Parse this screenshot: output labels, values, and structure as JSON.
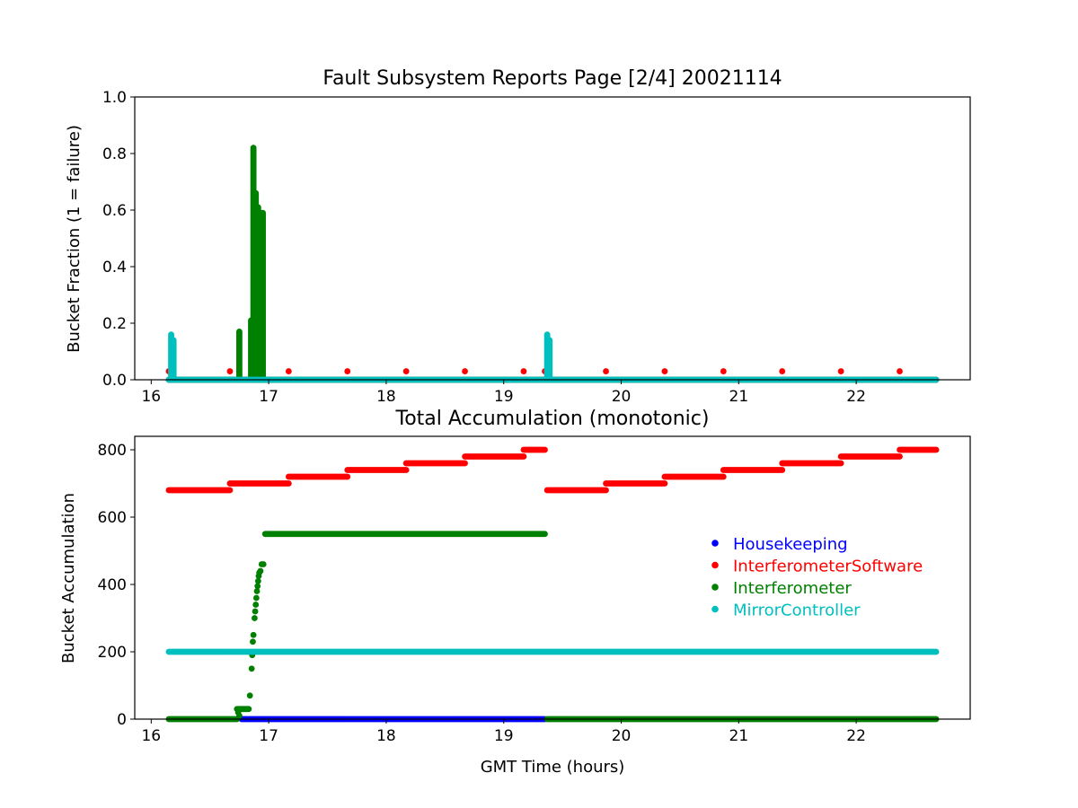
{
  "chart_data": [
    {
      "type": "scatter",
      "title": "Fault Subsystem Reports Page [2/4] 20021114",
      "xlabel": "",
      "ylabel": "Bucket Fraction (1 = failure)",
      "xlim": [
        15.86,
        22.97
      ],
      "ylim": [
        0.0,
        1.0
      ],
      "xticks": [
        16,
        17,
        18,
        19,
        20,
        21,
        22
      ],
      "yticks": [
        0.0,
        0.2,
        0.4,
        0.6,
        0.8,
        1.0
      ],
      "ytick_labels": [
        "0.0",
        "0.2",
        "0.4",
        "0.6",
        "0.8",
        "1.0"
      ],
      "grid": false,
      "series": [
        {
          "name": "InterferometerSoftware",
          "color": "#ff0000",
          "baseline": {
            "x_start": 16.15,
            "x_end": 22.68,
            "y": 0.0
          },
          "points": [
            {
              "x": 16.15,
              "y": 0.03
            },
            {
              "x": 16.67,
              "y": 0.03
            },
            {
              "x": 17.17,
              "y": 0.03
            },
            {
              "x": 17.67,
              "y": 0.03
            },
            {
              "x": 18.17,
              "y": 0.03
            },
            {
              "x": 18.67,
              "y": 0.03
            },
            {
              "x": 19.17,
              "y": 0.03
            },
            {
              "x": 19.35,
              "y": 0.03
            },
            {
              "x": 19.87,
              "y": 0.03
            },
            {
              "x": 20.37,
              "y": 0.03
            },
            {
              "x": 20.87,
              "y": 0.03
            },
            {
              "x": 21.37,
              "y": 0.03
            },
            {
              "x": 21.87,
              "y": 0.03
            },
            {
              "x": 22.37,
              "y": 0.03
            }
          ]
        },
        {
          "name": "Interferometer",
          "color": "#008000",
          "baseline": {
            "x_start": 16.15,
            "x_end": 22.68,
            "y": 0.0
          },
          "stems": [
            {
              "x": 16.75,
              "ymax": 0.17
            },
            {
              "x": 16.85,
              "ymax": 0.21
            },
            {
              "x": 16.87,
              "ymax": 0.82
            },
            {
              "x": 16.89,
              "ymax": 0.66
            },
            {
              "x": 16.91,
              "ymax": 0.61
            },
            {
              "x": 16.93,
              "ymax": 0.59
            },
            {
              "x": 16.95,
              "ymax": 0.59
            }
          ]
        },
        {
          "name": "MirrorController",
          "color": "#00bfbf",
          "baseline": {
            "x_start": 16.15,
            "x_end": 22.68,
            "y": 0.0
          },
          "stems": [
            {
              "x": 16.17,
              "ymax": 0.16
            },
            {
              "x": 16.19,
              "ymax": 0.14
            },
            {
              "x": 19.37,
              "ymax": 0.16
            },
            {
              "x": 19.39,
              "ymax": 0.14
            }
          ]
        }
      ]
    },
    {
      "type": "scatter",
      "title": "Total Accumulation (monotonic)",
      "xlabel": "GMT Time (hours)",
      "ylabel": "Bucket Accumulation",
      "xlim": [
        15.86,
        22.97
      ],
      "ylim": [
        0,
        840
      ],
      "xticks": [
        16,
        17,
        18,
        19,
        20,
        21,
        22
      ],
      "yticks": [
        0,
        200,
        400,
        600,
        800
      ],
      "grid": false,
      "legend": "center-right",
      "series": [
        {
          "name": "Housekeeping",
          "color": "#0000ff",
          "segments": [
            {
              "x_start": 16.77,
              "x_end": 19.35,
              "y": 0
            }
          ]
        },
        {
          "name": "InterferometerSoftware",
          "color": "#ff0000",
          "segments": [
            {
              "x_start": 16.15,
              "x_end": 16.67,
              "y": 680
            },
            {
              "x_start": 16.67,
              "x_end": 17.17,
              "y": 700
            },
            {
              "x_start": 17.17,
              "x_end": 17.67,
              "y": 720
            },
            {
              "x_start": 17.67,
              "x_end": 18.17,
              "y": 740
            },
            {
              "x_start": 18.17,
              "x_end": 18.67,
              "y": 760
            },
            {
              "x_start": 18.67,
              "x_end": 19.17,
              "y": 780
            },
            {
              "x_start": 19.17,
              "x_end": 19.35,
              "y": 800
            },
            {
              "x_start": 19.37,
              "x_end": 19.87,
              "y": 680
            },
            {
              "x_start": 19.87,
              "x_end": 20.37,
              "y": 700
            },
            {
              "x_start": 20.37,
              "x_end": 20.87,
              "y": 720
            },
            {
              "x_start": 20.87,
              "x_end": 21.37,
              "y": 740
            },
            {
              "x_start": 21.37,
              "x_end": 21.87,
              "y": 760
            },
            {
              "x_start": 21.87,
              "x_end": 22.37,
              "y": 780
            },
            {
              "x_start": 22.37,
              "x_end": 22.68,
              "y": 800
            }
          ]
        },
        {
          "name": "Interferometer",
          "color": "#008000",
          "segments": [
            {
              "x_start": 16.15,
              "x_end": 16.73,
              "y": 0
            },
            {
              "x_start": 16.73,
              "x_end": 16.83,
              "y": 30
            },
            {
              "x_start": 16.97,
              "x_end": 19.35,
              "y": 550
            },
            {
              "x_start": 19.37,
              "x_end": 22.68,
              "y": 0
            }
          ],
          "points": [
            {
              "x": 16.74,
              "y": 20
            },
            {
              "x": 16.75,
              "y": 10
            },
            {
              "x": 16.84,
              "y": 70
            },
            {
              "x": 16.855,
              "y": 150
            },
            {
              "x": 16.86,
              "y": 190
            },
            {
              "x": 16.865,
              "y": 230
            },
            {
              "x": 16.87,
              "y": 250
            },
            {
              "x": 16.88,
              "y": 300
            },
            {
              "x": 16.885,
              "y": 320
            },
            {
              "x": 16.89,
              "y": 340
            },
            {
              "x": 16.895,
              "y": 360
            },
            {
              "x": 16.9,
              "y": 380
            },
            {
              "x": 16.905,
              "y": 395
            },
            {
              "x": 16.91,
              "y": 410
            },
            {
              "x": 16.915,
              "y": 425
            },
            {
              "x": 16.92,
              "y": 435
            },
            {
              "x": 16.93,
              "y": 440
            },
            {
              "x": 16.94,
              "y": 460
            },
            {
              "x": 16.955,
              "y": 460
            }
          ]
        },
        {
          "name": "MirrorController",
          "color": "#00bfbf",
          "segments": [
            {
              "x_start": 16.15,
              "x_end": 22.68,
              "y": 200
            }
          ]
        }
      ]
    }
  ]
}
